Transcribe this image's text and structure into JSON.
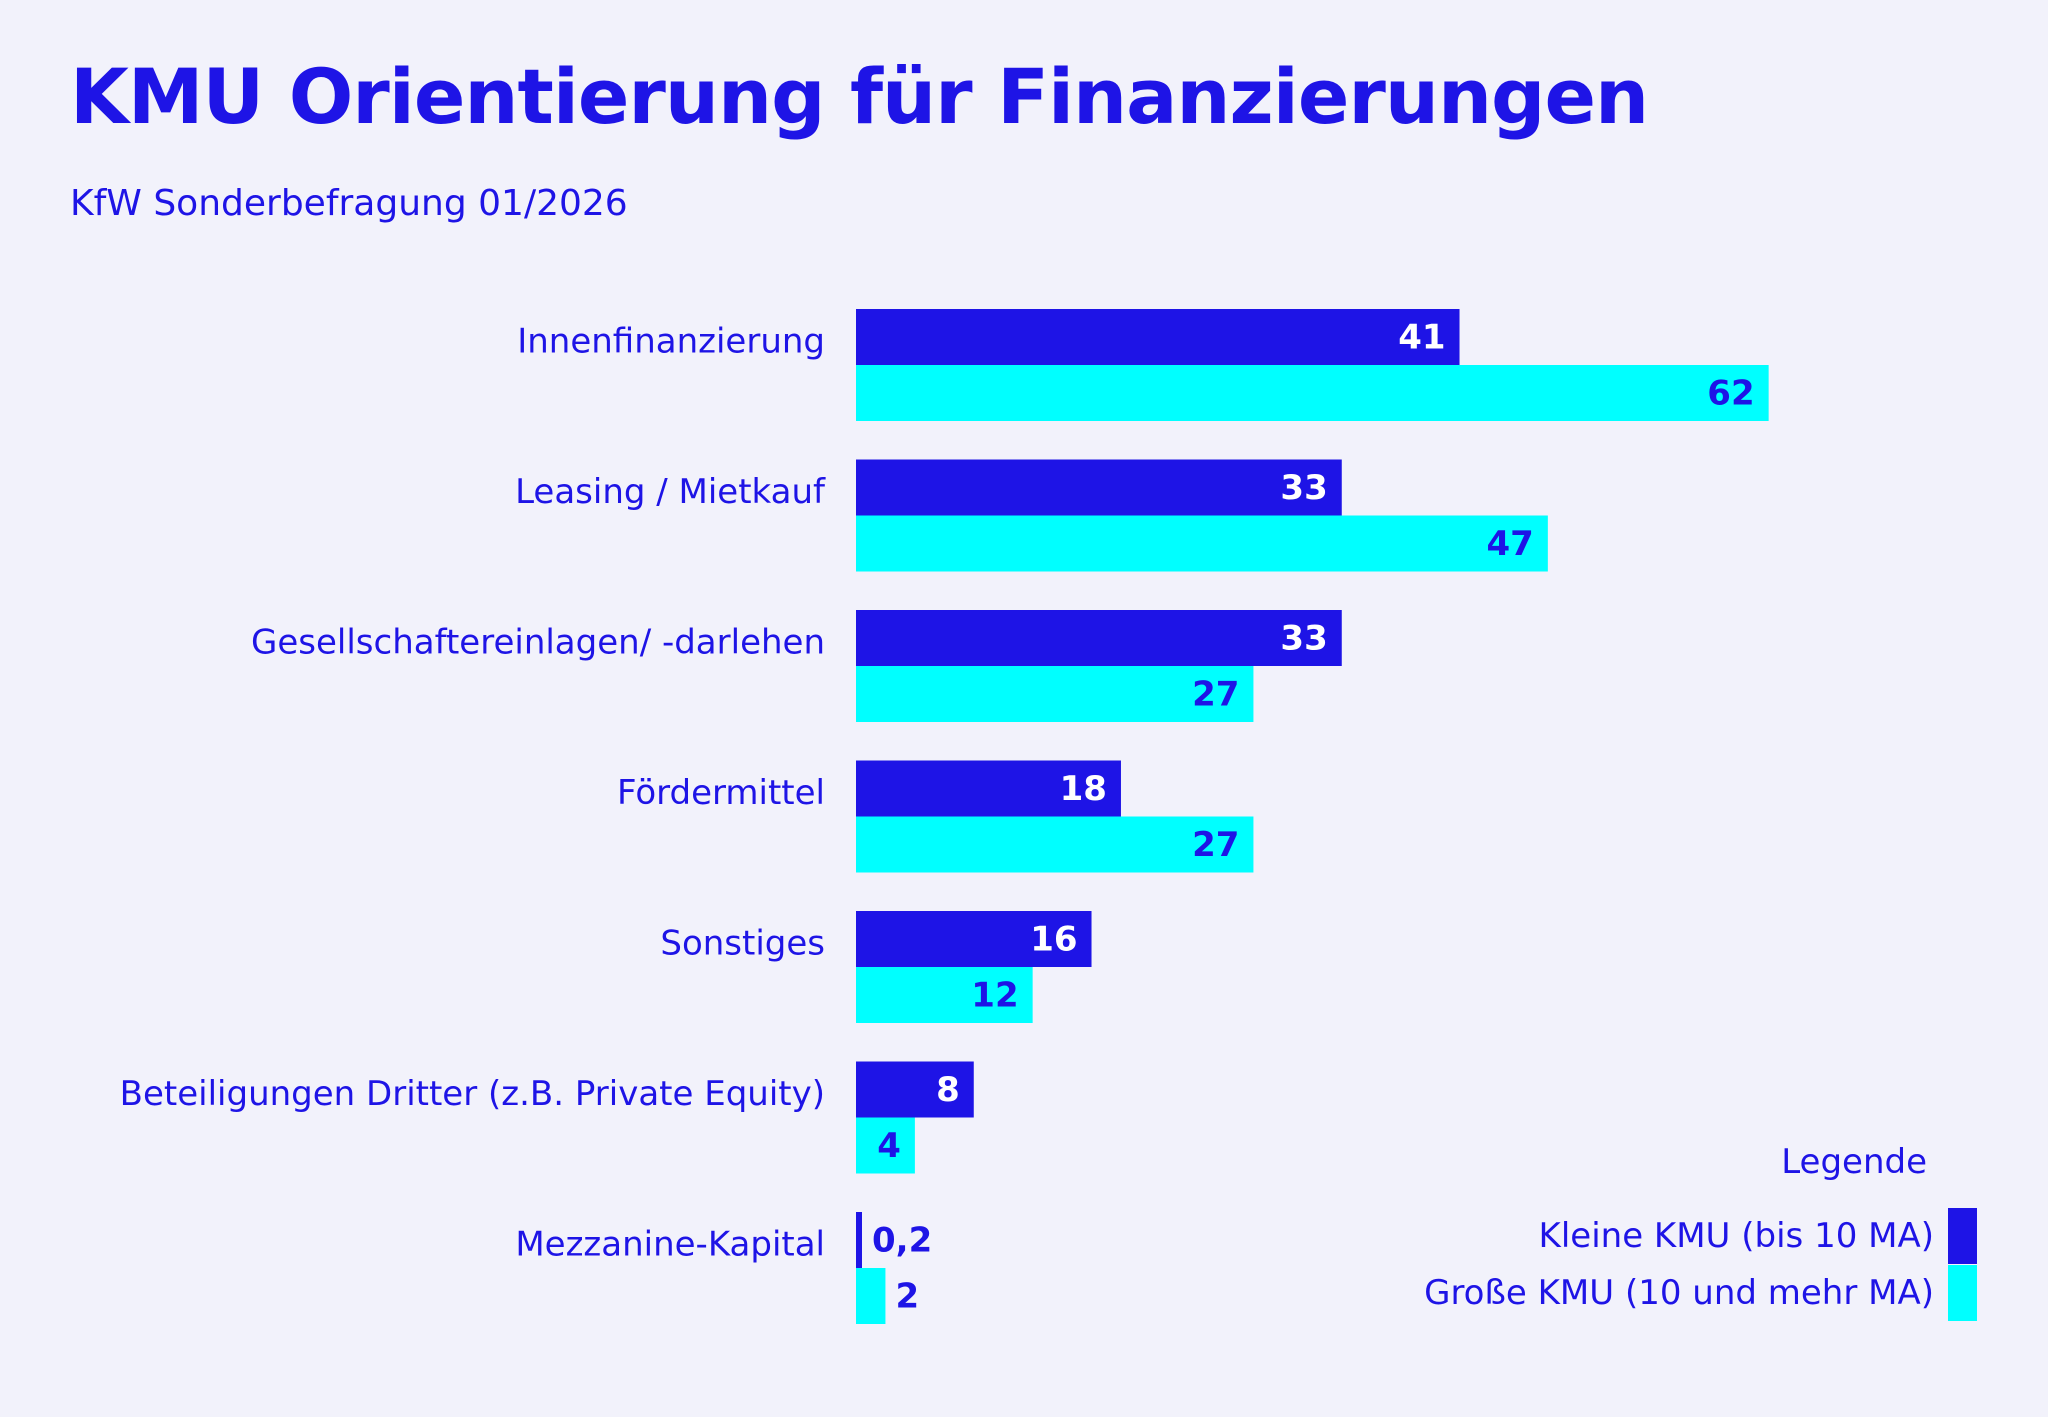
{
  "title": "KMU Orientierung für Finanzierungen",
  "subtitle": "KfW Sonderbefragung 01/2026",
  "legend": {
    "title": "Legende",
    "items": [
      {
        "label": "Kleine KMU (bis 10 MA)",
        "color": "#1e14e6"
      },
      {
        "label": "Große KMU (10 und mehr MA)",
        "color": "#00ffff"
      }
    ]
  },
  "chart_data": {
    "type": "bar",
    "orientation": "horizontal",
    "categories": [
      "Innenfinanzierung",
      "Leasing / Mietkauf",
      "Gesellschaftereinlagen/ -darlehen",
      "Fördermittel",
      "Sonstiges",
      "Beteiligungen Dritter (z.B. Private Equity)",
      "Mezzanine-Kapital"
    ],
    "series": [
      {
        "name": "Kleine KMU (bis 10 MA)",
        "color": "#1e14e6",
        "values": [
          41,
          33,
          33,
          18,
          16,
          8,
          0.2
        ],
        "labels": [
          "41",
          "33",
          "33",
          "18",
          "16",
          "8",
          "0,2"
        ]
      },
      {
        "name": "Große KMU (10 und mehr MA)",
        "color": "#00ffff",
        "values": [
          62,
          47,
          27,
          27,
          12,
          4,
          2
        ],
        "labels": [
          "62",
          "47",
          "27",
          "27",
          "12",
          "4",
          "2"
        ]
      }
    ],
    "axes_visible": false,
    "grid": false,
    "legend_position": "bottom-right"
  }
}
